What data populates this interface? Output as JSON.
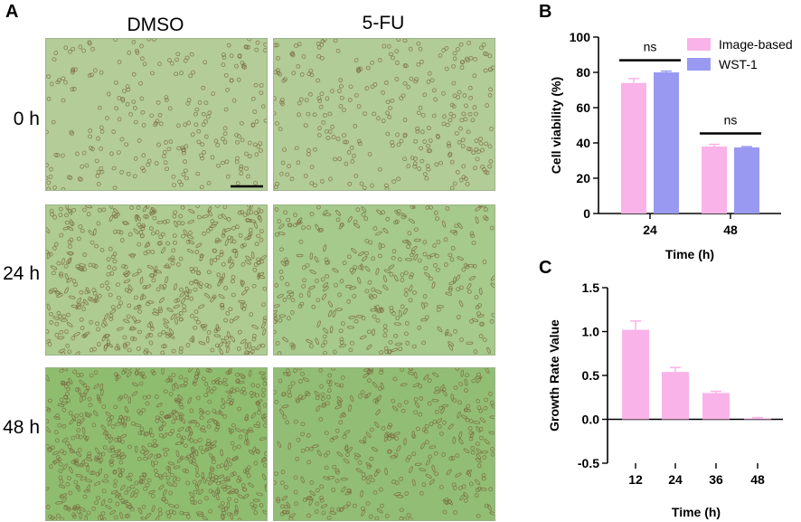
{
  "panel_a": {
    "letter": "A",
    "columns": [
      "DMSO",
      "5-FU"
    ],
    "rows": [
      "0 h",
      "24 h",
      "48 h"
    ],
    "image_colors": {
      "dmso": [
        "#b4cd98",
        "#aecb91",
        "#8fbd70"
      ],
      "fu": [
        "#b2cc97",
        "#a6c98c",
        "#92bd74"
      ]
    },
    "cell_color": "#7b6a3e"
  },
  "panel_b": {
    "letter": "B"
  },
  "panel_c": {
    "letter": "C"
  },
  "colors": {
    "image_based": "#f9b3e8",
    "wst1": "#9999f2",
    "axis": "#000000"
  },
  "chart_data": [
    {
      "type": "bar",
      "panel": "B",
      "categories": [
        "24",
        "48"
      ],
      "series": [
        {
          "name": "Image-based",
          "values": [
            74,
            38
          ],
          "errors": [
            2.5,
            1.2
          ]
        },
        {
          "name": "WST-1",
          "values": [
            80,
            37.5
          ],
          "errors": [
            0.7,
            0.4
          ]
        }
      ],
      "xlabel": "Time (h)",
      "ylabel": "Cell viability (%)",
      "ylim": [
        0,
        100
      ],
      "yticks": [
        "0",
        "20",
        "40",
        "60",
        "80",
        "100"
      ],
      "annotations": [
        "ns",
        "ns"
      ],
      "legend": "top-right"
    },
    {
      "type": "bar",
      "panel": "C",
      "categories": [
        "12",
        "24",
        "36",
        "48"
      ],
      "values": [
        1.02,
        0.54,
        0.3,
        0.01
      ],
      "errors": [
        0.1,
        0.05,
        0.02,
        0.01
      ],
      "xlabel": "Time (h)",
      "ylabel": "Growth Rate Value",
      "ylim": [
        -0.5,
        1.5
      ],
      "yticks": [
        "-0.5",
        "0.0",
        "0.5",
        "1.0",
        "1.5"
      ]
    }
  ]
}
